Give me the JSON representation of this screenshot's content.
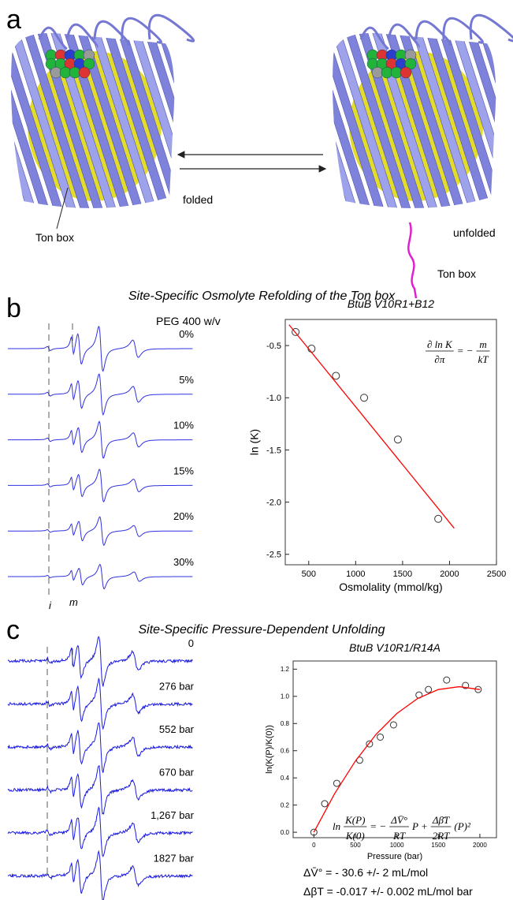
{
  "figure": {
    "panel_a": {
      "label": "a",
      "folded": "folded",
      "unfolded": "unfolded",
      "ton_box_left": "Ton box",
      "ton_box_right": "Ton box"
    },
    "panel_b": {
      "label": "b",
      "title": "Site-Specific Osmolyte Refolding of the Ton box",
      "series_header": "PEG 400 w/v",
      "spectra_labels": [
        "0%",
        "5%",
        "10%",
        "15%",
        "20%",
        "30%"
      ],
      "markers": [
        "i",
        "m"
      ]
    },
    "panel_c": {
      "label": "c",
      "title": "Site-Specific Pressure-Dependent Unfolding",
      "spectra_labels": [
        "0",
        "276 bar",
        "552 bar",
        "670 bar",
        "1,267 bar",
        "1827 bar"
      ],
      "annotations": [
        "ΔV̄° = - 30.6 +/- 2 mL/mol",
        "ΔβT = -0.017 +/- 0.002 mL/mol bar"
      ]
    }
  },
  "chart_data": [
    {
      "type": "scatter",
      "title": "BtuB V10R1+B12",
      "xlabel": "Osmolality (mmol/kg)",
      "ylabel": "ln (K)",
      "xlim": [
        250,
        2500
      ],
      "ylim": [
        -2.6,
        -0.25
      ],
      "xticks": [
        500,
        1000,
        1500,
        2000,
        2500
      ],
      "yticks": [
        -0.5,
        {
          "value": -1,
          "label": "-1.0"
        },
        -1.5,
        {
          "value": -2,
          "label": "-2.0"
        },
        -2.5
      ],
      "series": [
        {
          "style": "markers",
          "color": "#333333",
          "x": [
            360,
            530,
            790,
            1090,
            1450,
            1880
          ],
          "values": [
            -0.37,
            -0.53,
            -0.79,
            -1.0,
            -1.4,
            -2.16
          ]
        },
        {
          "style": "line",
          "color": "#ff0000",
          "x": [
            290,
            2050
          ],
          "values": [
            -0.3,
            -2.25
          ]
        }
      ],
      "equation": [
        {
          "num": "∂ ln K",
          "den": "∂π"
        },
        "= −",
        {
          "num": "m",
          "den": "kT"
        }
      ]
    },
    {
      "type": "scatter",
      "title": "BtuB V10R1/R14A",
      "xlabel": "Pressure (bar)",
      "ylabel": "ln(K(P)/K(0))",
      "xlim": [
        -250,
        2200
      ],
      "ylim": [
        -0.04,
        1.26
      ],
      "xticks": [
        0,
        500,
        1000,
        1500,
        2000
      ],
      "yticks": [
        {
          "value": 0,
          "label": "0.0"
        },
        0.2,
        0.4,
        0.6,
        0.8,
        {
          "value": 1,
          "label": "1.0"
        },
        1.2
      ],
      "series": [
        {
          "style": "markers",
          "color": "#333333",
          "x": [
            0,
            130,
            276,
            552,
            670,
            800,
            960,
            1267,
            1380,
            1600,
            1827,
            1980
          ],
          "values": [
            0.0,
            0.21,
            0.36,
            0.53,
            0.65,
            0.7,
            0.79,
            1.01,
            1.05,
            1.12,
            1.08,
            1.05
          ]
        },
        {
          "style": "line",
          "color": "#ff0000",
          "x": [
            0,
            250,
            500,
            750,
            1000,
            1250,
            1500,
            1750,
            2000
          ],
          "values": [
            0,
            0.284,
            0.524,
            0.721,
            0.874,
            0.984,
            1.05,
            1.071,
            1.05
          ]
        }
      ],
      "equation": [
        "ln",
        {
          "num": "K(P)",
          "den": "K(0)"
        },
        "= −",
        {
          "num": "ΔV̄°",
          "den": "RT"
        },
        "P +",
        {
          "num": "Δβ̄T",
          "den": "2RT"
        },
        "(P)²"
      ]
    }
  ]
}
